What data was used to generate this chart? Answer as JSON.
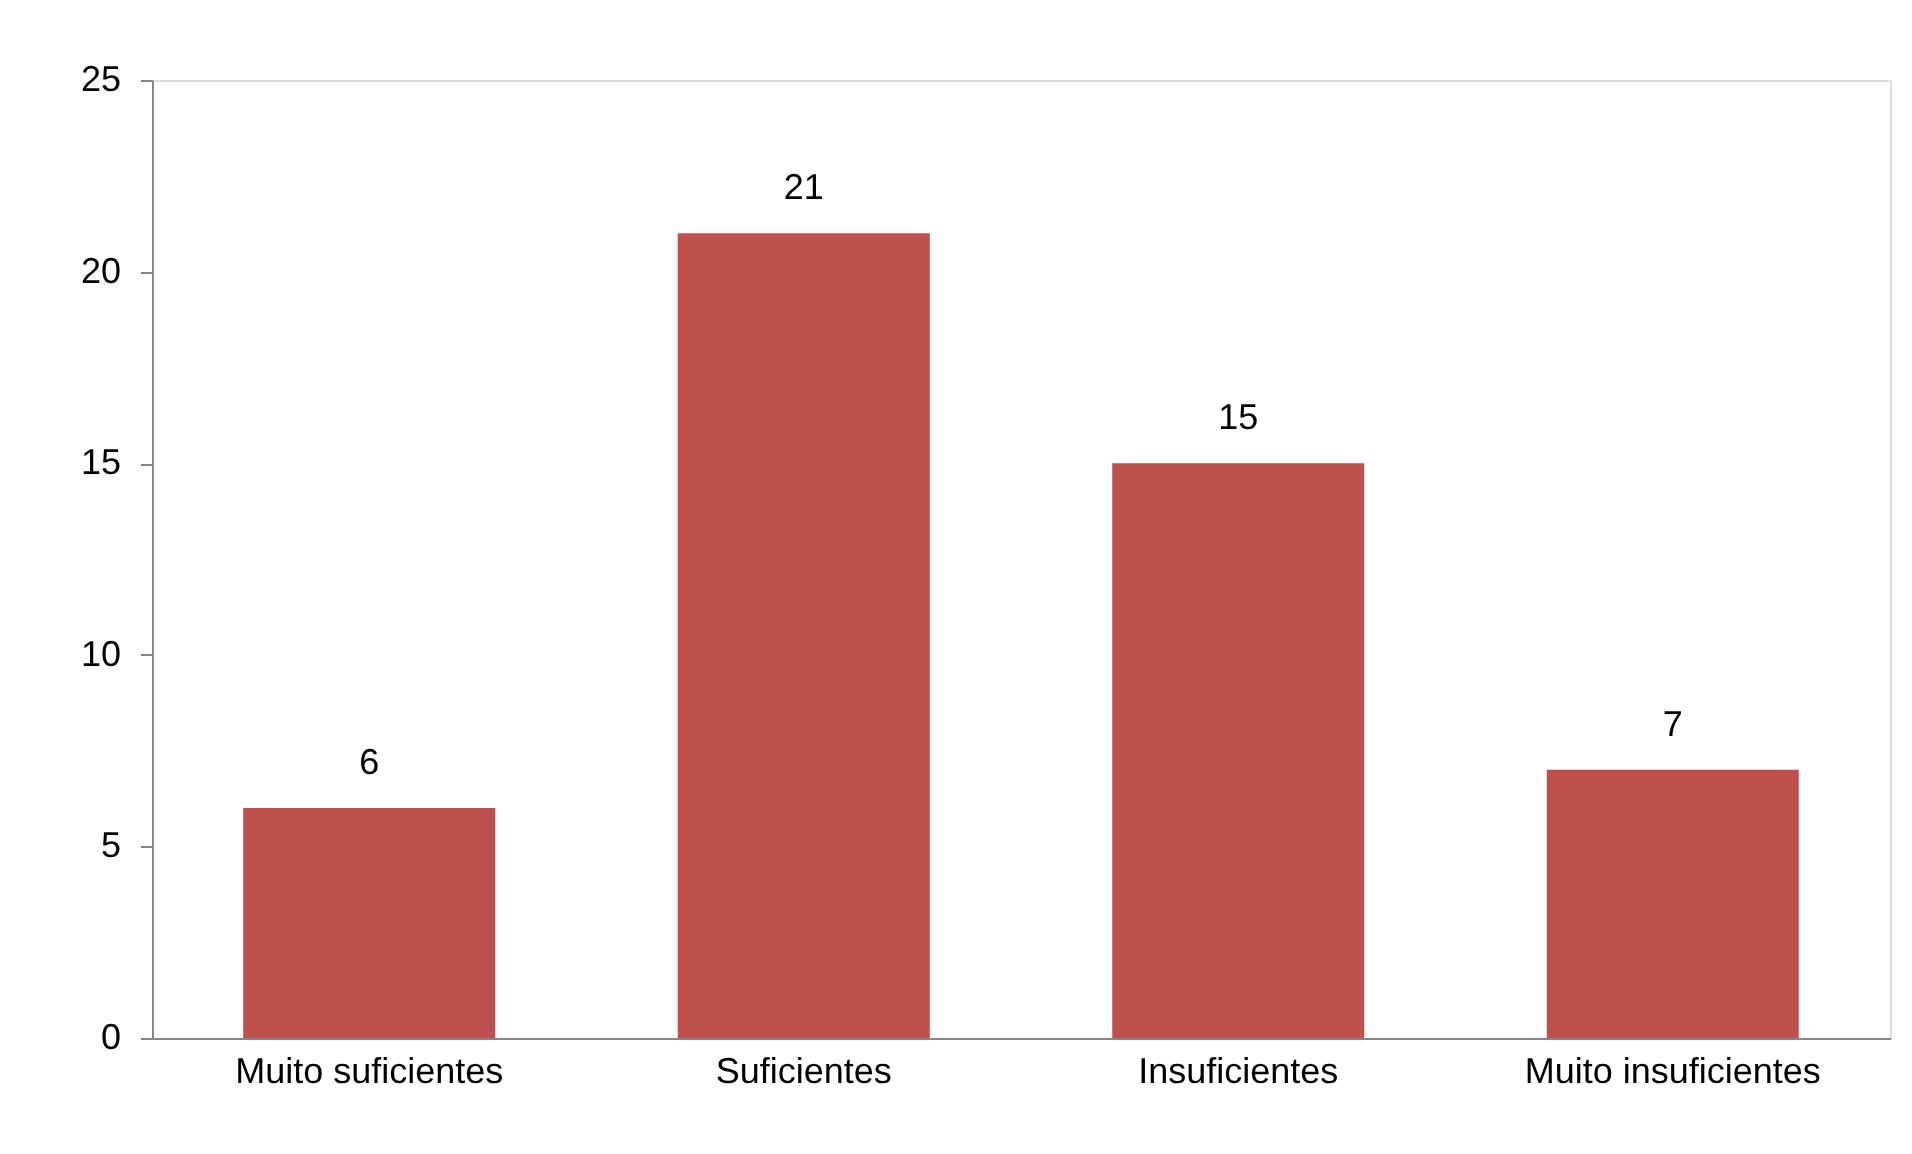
{
  "chart_data": {
    "type": "bar",
    "categories": [
      "Muito suficientes",
      "Suficientes",
      "Insuficientes",
      "Muito insuficientes"
    ],
    "values": [
      6,
      21,
      15,
      7
    ],
    "color": "#c0504d",
    "ylim": [
      0,
      25
    ],
    "yticks": [
      0,
      5,
      10,
      15,
      20,
      25
    ],
    "grid": false,
    "data_labels": true
  }
}
